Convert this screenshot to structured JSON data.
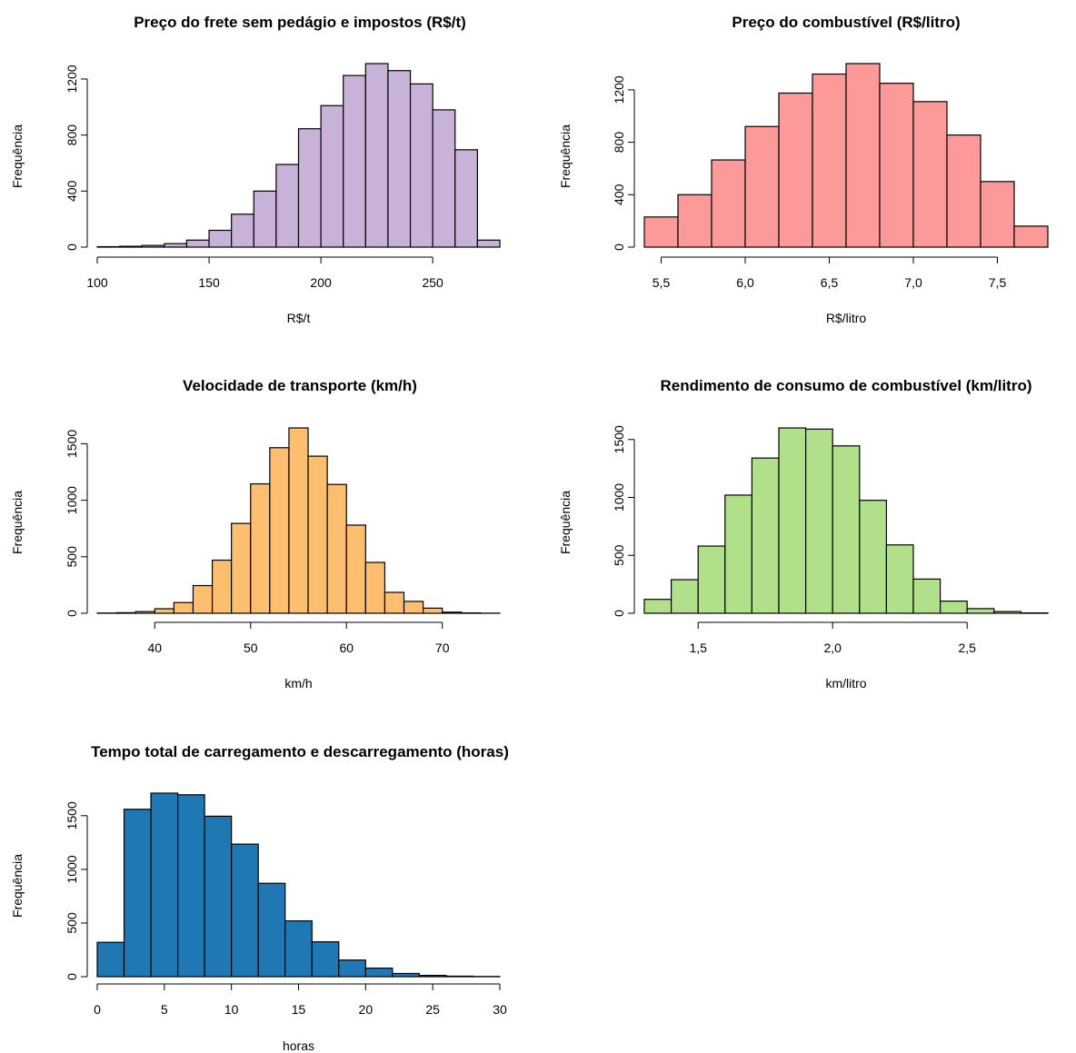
{
  "chart_data": [
    {
      "type": "bar",
      "title": "Preço do frete sem pedágio e impostos (R$/t)",
      "xlabel": "R$/t",
      "ylabel": "Frequência",
      "color": "#C8B2D8",
      "bin_edges": [
        100,
        110,
        120,
        130,
        140,
        150,
        160,
        170,
        180,
        190,
        200,
        210,
        220,
        230,
        240,
        250,
        260,
        270,
        280
      ],
      "values": [
        3,
        6,
        12,
        25,
        50,
        120,
        235,
        400,
        590,
        845,
        1010,
        1225,
        1310,
        1260,
        1165,
        980,
        695,
        50
      ],
      "xlim": [
        100,
        280
      ],
      "ylim": [
        0,
        1310
      ],
      "x_ticks": [
        100,
        150,
        200,
        250
      ],
      "x_tick_labels": [
        "100",
        "150",
        "200",
        "250"
      ],
      "y_ticks": [
        0,
        400,
        800,
        1200
      ],
      "y_tick_labels": [
        "0",
        "400",
        "800",
        "1200"
      ]
    },
    {
      "type": "bar",
      "title": "Preço do combustível (R$/litro)",
      "xlabel": "R$/litro",
      "ylabel": "Frequência",
      "color": "#FB9A99",
      "bin_edges": [
        5.4,
        5.6,
        5.8,
        6.0,
        6.2,
        6.4,
        6.6,
        6.8,
        7.0,
        7.2,
        7.4,
        7.6,
        7.8
      ],
      "values": [
        230,
        400,
        665,
        920,
        1175,
        1320,
        1400,
        1250,
        1110,
        855,
        500,
        160
      ],
      "xlim": [
        5.4,
        7.8
      ],
      "ylim": [
        0,
        1400
      ],
      "x_ticks": [
        5.5,
        6.0,
        6.5,
        7.0,
        7.5
      ],
      "x_tick_labels": [
        "5,5",
        "6,0",
        "6,5",
        "7,0",
        "7,5"
      ],
      "y_ticks": [
        0,
        400,
        800,
        1200
      ],
      "y_tick_labels": [
        "0",
        "400",
        "800",
        "1200"
      ]
    },
    {
      "type": "bar",
      "title": "Velocidade de transporte (km/h)",
      "xlabel": "km/h",
      "ylabel": "Frequência",
      "color": "#FDBF6F",
      "bin_edges": [
        34,
        36,
        38,
        40,
        42,
        44,
        46,
        48,
        50,
        52,
        54,
        56,
        58,
        60,
        62,
        64,
        66,
        68,
        70,
        72,
        74,
        76
      ],
      "values": [
        2,
        5,
        15,
        40,
        95,
        245,
        470,
        795,
        1145,
        1465,
        1640,
        1390,
        1140,
        780,
        450,
        185,
        105,
        45,
        10,
        3,
        1
      ],
      "xlim": [
        34,
        76
      ],
      "ylim": [
        0,
        1640
      ],
      "x_ticks": [
        40,
        50,
        60,
        70
      ],
      "x_tick_labels": [
        "40",
        "50",
        "60",
        "70"
      ],
      "y_ticks": [
        0,
        500,
        1000,
        1500
      ],
      "y_tick_labels": [
        "0",
        "500",
        "1000",
        "1500"
      ]
    },
    {
      "type": "bar",
      "title": "Rendimento de consumo de combustível (km/litro)",
      "xlabel": "km/litro",
      "ylabel": "Frequência",
      "color": "#B2DF8A",
      "bin_edges": [
        1.3,
        1.4,
        1.5,
        1.6,
        1.7,
        1.8,
        1.9,
        2.0,
        2.1,
        2.2,
        2.3,
        2.4,
        2.5,
        2.6,
        2.7,
        2.8
      ],
      "values": [
        120,
        290,
        580,
        1020,
        1340,
        1600,
        1590,
        1445,
        975,
        590,
        295,
        105,
        40,
        15,
        3
      ],
      "xlim": [
        1.3,
        2.8
      ],
      "ylim": [
        0,
        1600
      ],
      "x_ticks": [
        1.5,
        2.0,
        2.5
      ],
      "x_tick_labels": [
        "1,5",
        "2,0",
        "2,5"
      ],
      "y_ticks": [
        0,
        500,
        1000,
        1500
      ],
      "y_tick_labels": [
        "0",
        "500",
        "1000",
        "1500"
      ]
    },
    {
      "type": "bar",
      "title": "Tempo total de carregamento e descarregamento (horas)",
      "xlabel": "horas",
      "ylabel": "Frequência",
      "color": "#1F78B4",
      "bin_edges": [
        0,
        2,
        4,
        6,
        8,
        10,
        12,
        14,
        16,
        18,
        20,
        22,
        24,
        26,
        28,
        30
      ],
      "values": [
        320,
        1560,
        1710,
        1695,
        1495,
        1235,
        870,
        520,
        325,
        155,
        80,
        30,
        12,
        5,
        2
      ],
      "xlim": [
        0,
        30
      ],
      "ylim": [
        0,
        1710
      ],
      "x_ticks": [
        0,
        5,
        10,
        15,
        20,
        25,
        30
      ],
      "x_tick_labels": [
        "0",
        "5",
        "10",
        "15",
        "20",
        "25",
        "30"
      ],
      "y_ticks": [
        0,
        500,
        1000,
        1500
      ],
      "y_tick_labels": [
        "0",
        "500",
        "1000",
        "1500"
      ]
    }
  ]
}
